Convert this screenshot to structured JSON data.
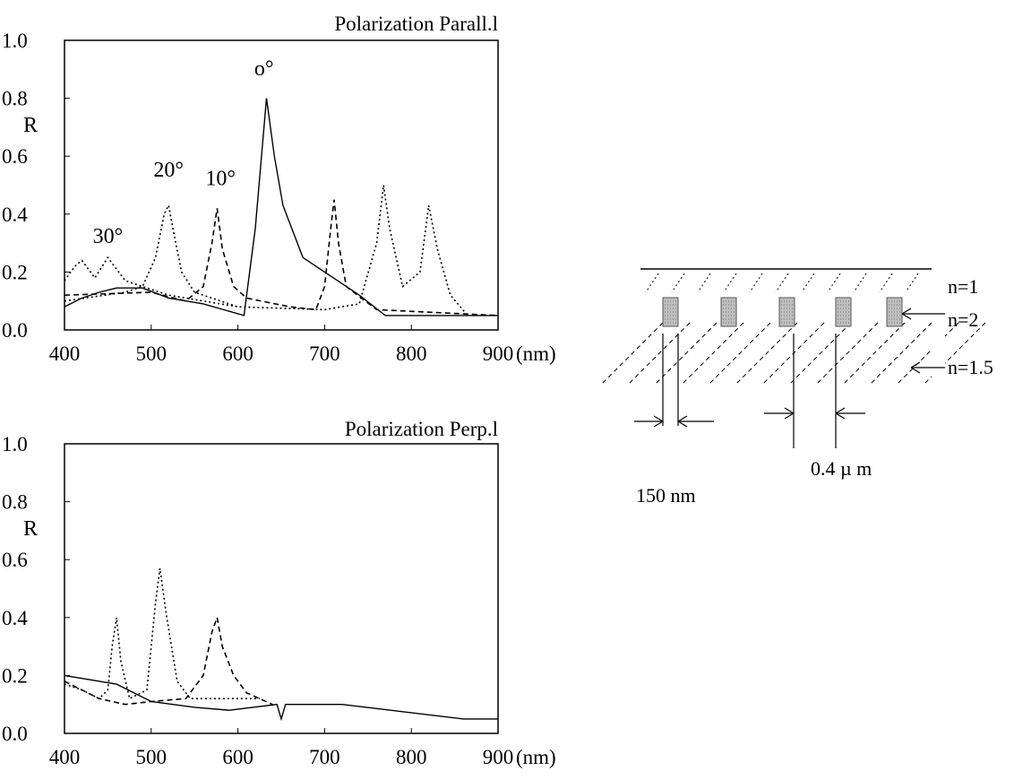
{
  "chart_data": [
    {
      "type": "line",
      "title": "Polarization Parall.l",
      "ylabel": "R",
      "x_unit": "(nm)",
      "xlim": [
        400,
        900
      ],
      "ylim": [
        0,
        1
      ],
      "x_ticks": [
        "400",
        "500",
        "600",
        "700",
        "800",
        "900"
      ],
      "y_ticks": [
        "0.0",
        "0.2",
        "0.4",
        "0.6",
        "0.8",
        "1.0"
      ],
      "annotations": [
        {
          "text": "o°",
          "x": 630,
          "y": 0.88
        },
        {
          "text": "10°",
          "x": 580,
          "y": 0.5
        },
        {
          "text": "20°",
          "x": 520,
          "y": 0.53
        },
        {
          "text": "30°",
          "x": 450,
          "y": 0.3
        }
      ],
      "series": [
        {
          "style": "solid",
          "points": [
            [
              400,
              0.08
            ],
            [
              420,
              0.11
            ],
            [
              440,
              0.13
            ],
            [
              460,
              0.145
            ],
            [
              490,
              0.145
            ],
            [
              520,
              0.11
            ],
            [
              560,
              0.09
            ],
            [
              607,
              0.05
            ],
            [
              620,
              0.35
            ],
            [
              633,
              0.8
            ],
            [
              642,
              0.6
            ],
            [
              652,
              0.43
            ],
            [
              675,
              0.25
            ],
            [
              700,
              0.2
            ],
            [
              740,
              0.12
            ],
            [
              770,
              0.05
            ],
            [
              900,
              0.05
            ]
          ]
        },
        {
          "style": "dashed",
          "points": [
            [
              400,
              0.12
            ],
            [
              500,
              0.13
            ],
            [
              540,
              0.1
            ],
            [
              560,
              0.15
            ],
            [
              570,
              0.3
            ],
            [
              576,
              0.42
            ],
            [
              582,
              0.28
            ],
            [
              595,
              0.15
            ],
            [
              610,
              0.11
            ],
            [
              660,
              0.08
            ],
            [
              690,
              0.07
            ],
            [
              700,
              0.15
            ],
            [
              707,
              0.35
            ],
            [
              711,
              0.45
            ],
            [
              716,
              0.3
            ],
            [
              725,
              0.15
            ],
            [
              760,
              0.07
            ],
            [
              900,
              0.05
            ]
          ]
        },
        {
          "style": "dotted",
          "points": [
            [
              400,
              0.1
            ],
            [
              470,
              0.13
            ],
            [
              490,
              0.15
            ],
            [
              505,
              0.25
            ],
            [
              515,
              0.4
            ],
            [
              520,
              0.43
            ],
            [
              525,
              0.35
            ],
            [
              535,
              0.2
            ],
            [
              550,
              0.13
            ],
            [
              600,
              0.08
            ],
            [
              700,
              0.07
            ],
            [
              740,
              0.09
            ],
            [
              760,
              0.3
            ],
            [
              768,
              0.5
            ],
            [
              775,
              0.35
            ],
            [
              790,
              0.15
            ],
            [
              810,
              0.2
            ],
            [
              820,
              0.43
            ],
            [
              830,
              0.28
            ],
            [
              845,
              0.12
            ],
            [
              865,
              0.05
            ]
          ]
        },
        {
          "style": "dotted",
          "points": [
            [
              400,
              0.17
            ],
            [
              412,
              0.22
            ],
            [
              420,
              0.24
            ],
            [
              435,
              0.18
            ],
            [
              450,
              0.25
            ],
            [
              470,
              0.17
            ],
            [
              490,
              0.15
            ],
            [
              520,
              0.12
            ],
            [
              560,
              0.1
            ],
            [
              600,
              0.08
            ]
          ]
        }
      ]
    },
    {
      "type": "line",
      "title": "Polarization Perp.l",
      "ylabel": "R",
      "x_unit": "(nm)",
      "xlim": [
        400,
        900
      ],
      "ylim": [
        0,
        1
      ],
      "x_ticks": [
        "400",
        "500",
        "600",
        "700",
        "800",
        "900"
      ],
      "y_ticks": [
        "0.0",
        "0.2",
        "0.4",
        "0.6",
        "0.8",
        "1.0"
      ],
      "series": [
        {
          "style": "solid",
          "points": [
            [
              400,
              0.2
            ],
            [
              460,
              0.17
            ],
            [
              500,
              0.11
            ],
            [
              550,
              0.09
            ],
            [
              590,
              0.08
            ],
            [
              645,
              0.1
            ],
            [
              650,
              0.05
            ],
            [
              655,
              0.1
            ],
            [
              720,
              0.1
            ],
            [
              860,
              0.05
            ],
            [
              900,
              0.05
            ]
          ]
        },
        {
          "style": "dashed",
          "points": [
            [
              400,
              0.18
            ],
            [
              440,
              0.12
            ],
            [
              470,
              0.1
            ],
            [
              500,
              0.11
            ],
            [
              540,
              0.12
            ],
            [
              560,
              0.2
            ],
            [
              570,
              0.35
            ],
            [
              576,
              0.4
            ],
            [
              582,
              0.3
            ],
            [
              595,
              0.2
            ],
            [
              610,
              0.14
            ],
            [
              640,
              0.1
            ]
          ]
        },
        {
          "style": "dotted",
          "points": [
            [
              400,
              0.17
            ],
            [
              420,
              0.15
            ],
            [
              440,
              0.12
            ],
            [
              450,
              0.15
            ],
            [
              455,
              0.3
            ],
            [
              460,
              0.4
            ],
            [
              465,
              0.25
            ],
            [
              475,
              0.12
            ],
            [
              495,
              0.15
            ],
            [
              505,
              0.45
            ],
            [
              510,
              0.57
            ],
            [
              518,
              0.4
            ],
            [
              530,
              0.18
            ],
            [
              545,
              0.12
            ],
            [
              600,
              0.12
            ],
            [
              625,
              0.12
            ]
          ]
        }
      ]
    }
  ],
  "diagram": {
    "layer_labels": [
      "n=1",
      "n=2",
      "n=1.5"
    ],
    "width_label": "150 nm",
    "period_label": "0.4 µ m"
  }
}
